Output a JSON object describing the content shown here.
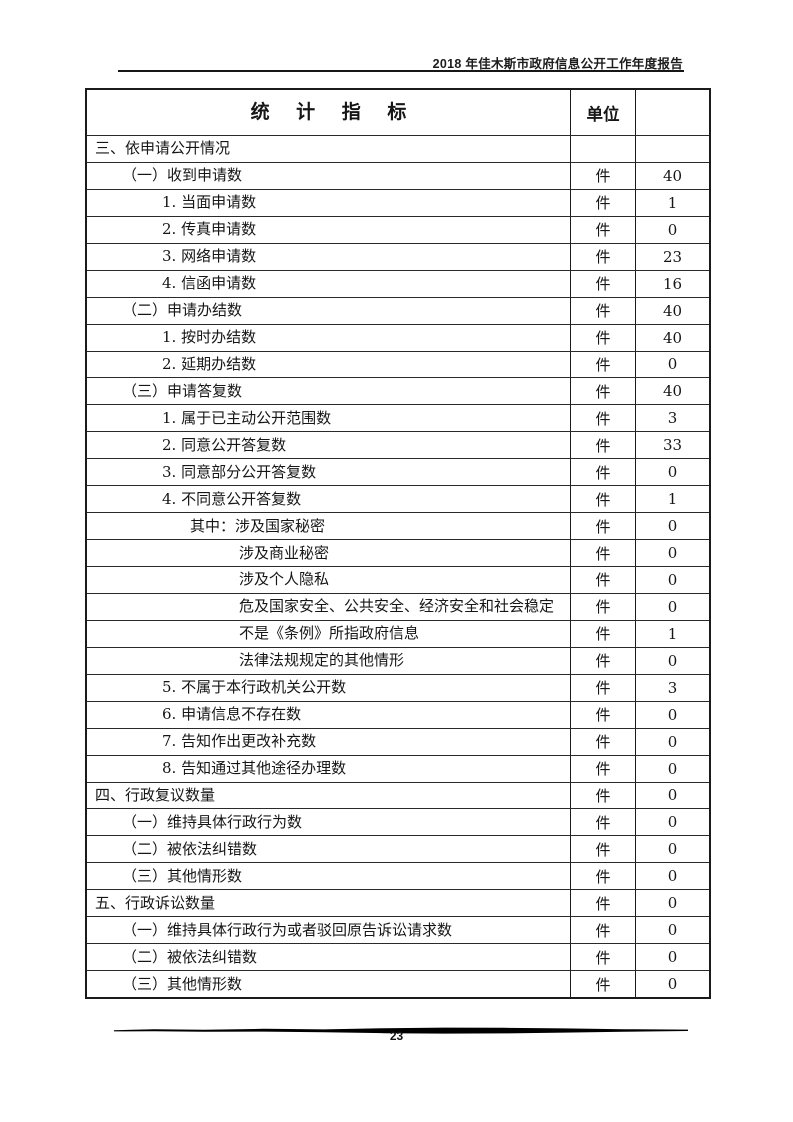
{
  "colors": {
    "ink": "#161616",
    "paper": "#ffffff"
  },
  "page_header": {
    "title": "2018 年佳木斯市政府信息公开工作年度报告"
  },
  "table": {
    "header": {
      "indicator": "统 计 指 标",
      "unit": "单位",
      "value": ""
    },
    "rows": [
      {
        "label": "三、依申请公开情况",
        "level": 0,
        "unit": "",
        "value": ""
      },
      {
        "label": "（一）收到申请数",
        "level": 1,
        "unit": "件",
        "value": "40"
      },
      {
        "label": "1. 当面申请数",
        "level": 2,
        "unit": "件",
        "value": "1"
      },
      {
        "label": "2. 传真申请数",
        "level": 2,
        "unit": "件",
        "value": "0"
      },
      {
        "label": "3. 网络申请数",
        "level": 2,
        "unit": "件",
        "value": "23"
      },
      {
        "label": "4. 信函申请数",
        "level": 2,
        "unit": "件",
        "value": "16"
      },
      {
        "label": "（二）申请办结数",
        "level": 1,
        "unit": "件",
        "value": "40"
      },
      {
        "label": "1. 按时办结数",
        "level": 2,
        "unit": "件",
        "value": "40"
      },
      {
        "label": "2. 延期办结数",
        "level": 2,
        "unit": "件",
        "value": "0"
      },
      {
        "label": "（三）申请答复数",
        "level": 1,
        "unit": "件",
        "value": "40"
      },
      {
        "label": "1. 属于已主动公开范围数",
        "level": 2,
        "unit": "件",
        "value": "3"
      },
      {
        "label": "2. 同意公开答复数",
        "level": 2,
        "unit": "件",
        "value": "33"
      },
      {
        "label": "3. 同意部分公开答复数",
        "level": 2,
        "unit": "件",
        "value": "0"
      },
      {
        "label": "4. 不同意公开答复数",
        "level": 2,
        "unit": "件",
        "value": "1"
      },
      {
        "label": "其中：涉及国家秘密",
        "level": 3,
        "unit": "件",
        "value": "0"
      },
      {
        "label": "涉及商业秘密",
        "level": 4,
        "unit": "件",
        "value": "0"
      },
      {
        "label": "涉及个人隐私",
        "level": 4,
        "unit": "件",
        "value": "0"
      },
      {
        "label": "危及国家安全、公共安全、经济安全和社会稳定",
        "level": 4,
        "unit": "件",
        "value": "0"
      },
      {
        "label": "不是《条例》所指政府信息",
        "level": 4,
        "unit": "件",
        "value": "1"
      },
      {
        "label": "法律法规规定的其他情形",
        "level": 4,
        "unit": "件",
        "value": "0"
      },
      {
        "label": "5. 不属于本行政机关公开数",
        "level": 2,
        "unit": "件",
        "value": "3"
      },
      {
        "label": "6. 申请信息不存在数",
        "level": 2,
        "unit": "件",
        "value": "0"
      },
      {
        "label": "7. 告知作出更改补充数",
        "level": 2,
        "unit": "件",
        "value": "0"
      },
      {
        "label": "8. 告知通过其他途径办理数",
        "level": 2,
        "unit": "件",
        "value": "0"
      },
      {
        "label": "四、行政复议数量",
        "level": 0,
        "unit": "件",
        "value": "0"
      },
      {
        "label": "（一）维持具体行政行为数",
        "level": 1,
        "unit": "件",
        "value": "0"
      },
      {
        "label": "（二）被依法纠错数",
        "level": 1,
        "unit": "件",
        "value": "0"
      },
      {
        "label": "（三）其他情形数",
        "level": 1,
        "unit": "件",
        "value": "0"
      },
      {
        "label": "五、行政诉讼数量",
        "level": 0,
        "unit": "件",
        "value": "0"
      },
      {
        "label": "（一）维持具体行政行为或者驳回原告诉讼请求数",
        "level": 1,
        "unit": "件",
        "value": "0"
      },
      {
        "label": "（二）被依法纠错数",
        "level": 1,
        "unit": "件",
        "value": "0"
      },
      {
        "label": "（三）其他情形数",
        "level": 1,
        "unit": "件",
        "value": "0"
      }
    ]
  },
  "footer": {
    "page_number": "23"
  }
}
